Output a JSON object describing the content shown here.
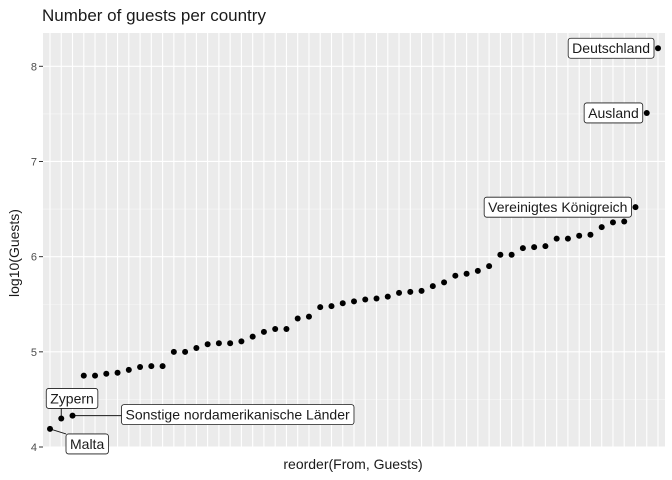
{
  "chart_data": {
    "type": "scatter",
    "title": "Number of guests per country",
    "xlabel": "reorder(From, Guests)",
    "ylabel": "log10(Guests)",
    "y_ticks": [
      4,
      5,
      6,
      7,
      8
    ],
    "ylim": [
      4,
      8.35
    ],
    "grid": true,
    "points": [
      4.19,
      4.3,
      4.33,
      4.75,
      4.75,
      4.77,
      4.78,
      4.81,
      4.84,
      4.85,
      4.85,
      5.0,
      5.0,
      5.04,
      5.08,
      5.09,
      5.09,
      5.11,
      5.16,
      5.21,
      5.24,
      5.24,
      5.35,
      5.37,
      5.47,
      5.48,
      5.51,
      5.53,
      5.55,
      5.56,
      5.58,
      5.62,
      5.63,
      5.64,
      5.69,
      5.73,
      5.8,
      5.82,
      5.85,
      5.9,
      6.02,
      6.02,
      6.09,
      6.1,
      6.11,
      6.19,
      6.19,
      6.22,
      6.23,
      6.31,
      6.36,
      6.37,
      6.52,
      7.51,
      8.19
    ],
    "annotations": [
      {
        "label": "Malta",
        "index": 0
      },
      {
        "label": "Zypern",
        "index": 1
      },
      {
        "label": "Sonstige nordamerikanische Länder",
        "index": 2
      },
      {
        "label": "Vereinigtes Königreich",
        "index": 52
      },
      {
        "label": "Ausland",
        "index": 53
      },
      {
        "label": "Deutschland",
        "index": 54
      }
    ]
  }
}
